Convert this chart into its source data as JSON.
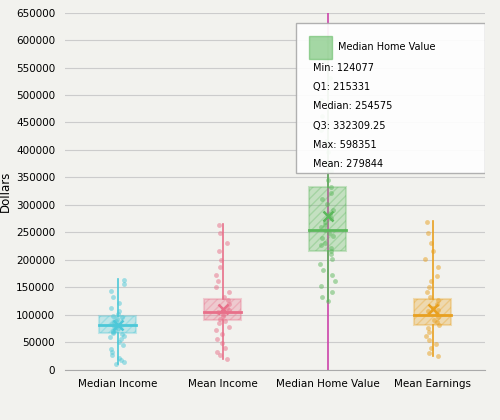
{
  "categories": [
    "Median Income",
    "Mean Income",
    "Median Home Value",
    "Mean Earnings"
  ],
  "colors": [
    "#4DC8D8",
    "#E8708A",
    "#5CB85C",
    "#E8A020"
  ],
  "box_stats": [
    {
      "q1": 67000,
      "median": 82000,
      "q3": 97000,
      "mean": 82000,
      "whisker_low": 10000,
      "whisker_high": 165000
    },
    {
      "q1": 90000,
      "median": 105000,
      "q3": 128000,
      "mean": 110000,
      "whisker_low": 20000,
      "whisker_high": 265000
    },
    {
      "q1": 215331,
      "median": 254575,
      "q3": 332309,
      "mean": 279844,
      "whisker_low": 124077,
      "whisker_high": 598351
    },
    {
      "q1": 82000,
      "median": 100000,
      "q3": 128000,
      "mean": 110000,
      "whisker_low": 25000,
      "whisker_high": 270000
    }
  ],
  "scatter_points": {
    "Median Income": [
      10000,
      13000,
      17000,
      22000,
      27000,
      32000,
      38000,
      44000,
      50000,
      55000,
      59000,
      62000,
      65000,
      67000,
      69000,
      71000,
      73000,
      75000,
      77000,
      79000,
      81000,
      83000,
      86000,
      89000,
      92000,
      95000,
      98000,
      102000,
      107000,
      113000,
      122000,
      133000,
      143000,
      155000,
      163000
    ],
    "Mean Income": [
      20000,
      26000,
      32000,
      40000,
      48000,
      56000,
      64000,
      72000,
      78000,
      84000,
      89000,
      93000,
      97000,
      101000,
      105000,
      109000,
      113000,
      119000,
      126000,
      133000,
      141000,
      151000,
      161000,
      172000,
      186000,
      200000,
      216000,
      231000,
      248000,
      263000
    ],
    "Median Home Value": [
      124077,
      132000,
      142000,
      152000,
      162000,
      172000,
      182000,
      192000,
      202000,
      211000,
      216000,
      221000,
      226000,
      231000,
      239000,
      243000,
      249000,
      255000,
      259000,
      263000,
      269000,
      276000,
      283000,
      291000,
      301000,
      311000,
      321000,
      333000,
      346000,
      361000,
      376000,
      396000,
      416000,
      436000,
      461000,
      491000,
      531000,
      561000,
      598351
    ],
    "Mean Earnings": [
      25000,
      31000,
      39000,
      46000,
      53000,
      61000,
      69000,
      76000,
      81000,
      86000,
      91000,
      96000,
      101000,
      106000,
      109000,
      113000,
      119000,
      126000,
      133000,
      141000,
      151000,
      161000,
      171000,
      186000,
      201000,
      216000,
      231000,
      249000,
      268000
    ]
  },
  "vline_x": 3,
  "vline_color": "#CC44AA",
  "ylabel": "Dollars",
  "ylim": [
    0,
    650000
  ],
  "yticks": [
    0,
    50000,
    100000,
    150000,
    200000,
    250000,
    300000,
    350000,
    400000,
    450000,
    500000,
    550000,
    600000,
    650000
  ],
  "legend_label": "Median Home Value",
  "legend_stats": {
    "Min": "124077",
    "Q1": "215331",
    "Median": "254575",
    "Q3": "332309.25",
    "Max": "598351",
    "Mean": "279844"
  },
  "bg_color": "#F2F2EE",
  "grid_color": "#CCCCCC",
  "box_width": 0.35,
  "scatter_jitter": 0.07
}
